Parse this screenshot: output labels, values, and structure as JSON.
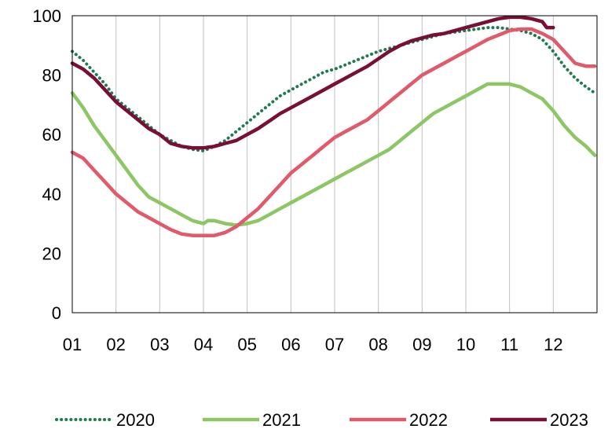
{
  "chart_data": {
    "type": "line",
    "title": "",
    "xlabel": "",
    "ylabel": "",
    "x_ticks": [
      "01",
      "02",
      "03",
      "04",
      "05",
      "06",
      "07",
      "08",
      "09",
      "10",
      "11",
      "12"
    ],
    "x_range": [
      1,
      13
    ],
    "ylim": [
      0,
      100
    ],
    "y_ticks": [
      0,
      20,
      40,
      60,
      80,
      100
    ],
    "grid": "vertical",
    "legend_position": "bottom",
    "series": [
      {
        "name": "2020",
        "color": "#1f7a4d",
        "style": "dotted",
        "x": [
          1.0,
          1.25,
          1.5,
          1.75,
          2.0,
          2.25,
          2.5,
          2.75,
          3.0,
          3.25,
          3.5,
          3.75,
          4.0,
          4.25,
          4.5,
          4.75,
          5.0,
          5.25,
          5.5,
          5.75,
          6.0,
          6.25,
          6.5,
          6.75,
          7.0,
          7.25,
          7.5,
          7.75,
          8.0,
          8.25,
          8.5,
          8.75,
          9.0,
          9.25,
          9.5,
          9.75,
          10.0,
          10.25,
          10.5,
          10.75,
          11.0,
          11.25,
          11.5,
          11.75,
          12.0,
          12.25,
          12.5,
          12.75,
          12.95
        ],
        "values": [
          88,
          85,
          81,
          77,
          72,
          69,
          66,
          63,
          60,
          58,
          56,
          55,
          54.5,
          56,
          58,
          61,
          64,
          67,
          70,
          73,
          75,
          77,
          79,
          81,
          82,
          83.5,
          85,
          86.5,
          88,
          89,
          90,
          91,
          92,
          93,
          94,
          94.5,
          95,
          95.5,
          96,
          96,
          95.5,
          95,
          94,
          92,
          88,
          83,
          79,
          76,
          74
        ]
      },
      {
        "name": "2021",
        "color": "#8cc665",
        "style": "solid",
        "x": [
          1.0,
          1.25,
          1.5,
          1.75,
          2.0,
          2.25,
          2.5,
          2.75,
          3.0,
          3.25,
          3.5,
          3.75,
          4.0,
          4.1,
          4.25,
          4.5,
          4.75,
          5.0,
          5.25,
          5.5,
          5.75,
          6.0,
          6.25,
          6.5,
          6.75,
          7.0,
          7.25,
          7.5,
          7.75,
          8.0,
          8.25,
          8.5,
          8.75,
          9.0,
          9.25,
          9.5,
          9.75,
          10.0,
          10.25,
          10.5,
          10.75,
          11.0,
          11.25,
          11.5,
          11.75,
          12.0,
          12.25,
          12.5,
          12.75,
          12.95
        ],
        "values": [
          74,
          69,
          63,
          58,
          53,
          48,
          43,
          39,
          37,
          35,
          33,
          31,
          30,
          31,
          31,
          30,
          29.5,
          30,
          31,
          33,
          35,
          37,
          39,
          41,
          43,
          45,
          47,
          49,
          51,
          53,
          55,
          58,
          61,
          64,
          67,
          69,
          71,
          73,
          75,
          77,
          77,
          77,
          76,
          74,
          72,
          68,
          63,
          59,
          56,
          53
        ]
      },
      {
        "name": "2022",
        "color": "#e05a6b",
        "style": "solid",
        "x": [
          1.0,
          1.25,
          1.5,
          1.75,
          2.0,
          2.25,
          2.5,
          2.75,
          3.0,
          3.25,
          3.5,
          3.75,
          4.0,
          4.25,
          4.5,
          4.75,
          5.0,
          5.25,
          5.5,
          5.75,
          6.0,
          6.25,
          6.5,
          6.75,
          7.0,
          7.25,
          7.5,
          7.75,
          8.0,
          8.25,
          8.5,
          8.75,
          9.0,
          9.25,
          9.5,
          9.75,
          10.0,
          10.25,
          10.5,
          10.75,
          11.0,
          11.25,
          11.5,
          11.75,
          12.0,
          12.25,
          12.5,
          12.75,
          12.95
        ],
        "values": [
          54,
          52,
          48,
          44,
          40,
          37,
          34,
          32,
          30,
          28,
          26.5,
          26,
          26,
          26,
          27,
          29,
          32,
          35,
          39,
          43,
          47,
          50,
          53,
          56,
          59,
          61,
          63,
          65,
          68,
          71,
          74,
          77,
          80,
          82,
          84,
          86,
          88,
          90,
          92,
          93.5,
          95,
          95.5,
          95.5,
          94,
          92,
          88,
          84,
          83,
          83
        ]
      },
      {
        "name": "2023",
        "color": "#7a0f35",
        "style": "solid",
        "x": [
          1.0,
          1.25,
          1.5,
          1.75,
          2.0,
          2.25,
          2.5,
          2.75,
          3.0,
          3.25,
          3.5,
          3.75,
          4.0,
          4.25,
          4.5,
          4.75,
          5.0,
          5.25,
          5.5,
          5.75,
          6.0,
          6.25,
          6.5,
          6.75,
          7.0,
          7.25,
          7.5,
          7.75,
          8.0,
          8.25,
          8.5,
          8.75,
          9.0,
          9.25,
          9.5,
          9.75,
          10.0,
          10.25,
          10.5,
          10.75,
          11.0,
          11.25,
          11.5,
          11.75,
          11.85,
          12.0
        ],
        "values": [
          84,
          82,
          79,
          75,
          71,
          68,
          65,
          62,
          60,
          57,
          56,
          55.5,
          55.5,
          56,
          57,
          58,
          60,
          62,
          64.5,
          67,
          69,
          71,
          73,
          75,
          77,
          79,
          81,
          83,
          85.5,
          88,
          90,
          91.5,
          92.5,
          93.5,
          94,
          95,
          96,
          97,
          98,
          99,
          99.5,
          99.5,
          99,
          98,
          96,
          96
        ]
      }
    ]
  }
}
